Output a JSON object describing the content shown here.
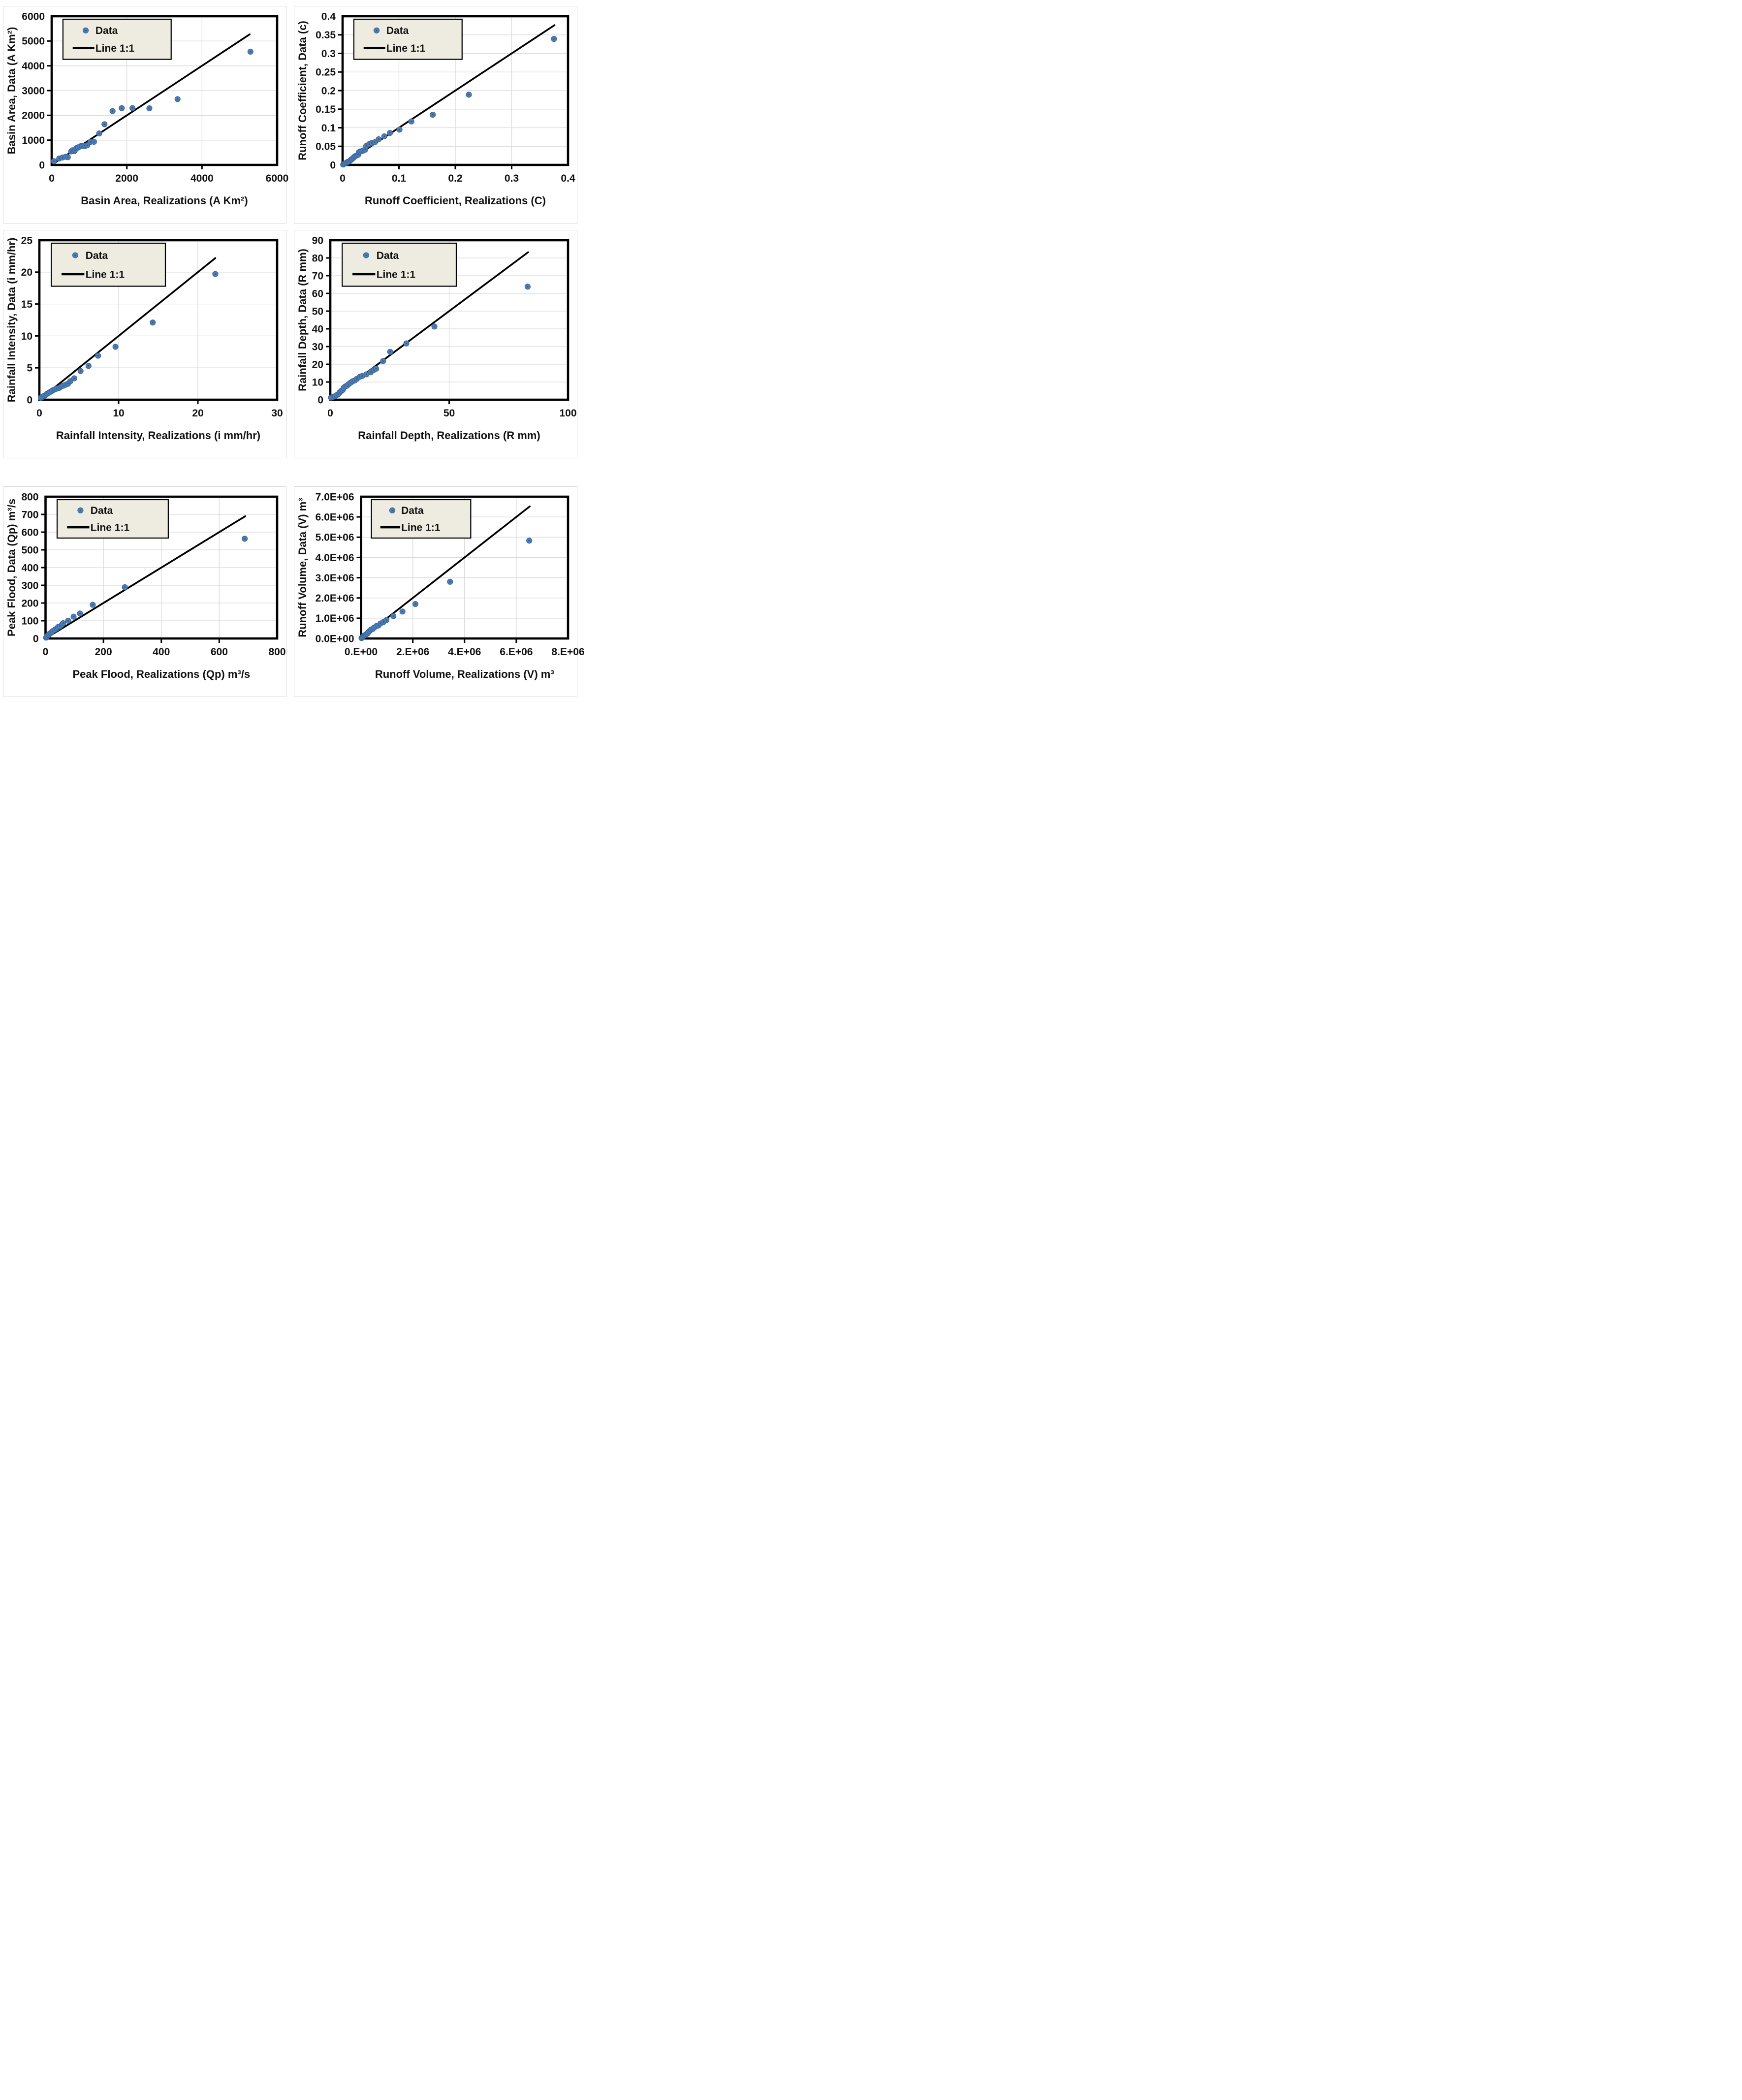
{
  "figure": {
    "description": "Six scatter plots comparing observed Data versus Monte-Carlo Realizations with a 1:1 line",
    "background": "#ffffff"
  },
  "colors": {
    "marker_fill": "#4a7ebc",
    "marker_edge": "#3a6394",
    "marker_core": "#55524e",
    "line": "#000000",
    "grid": "#d9d9d9",
    "frame": "#000000",
    "legend_fill": "#eeece1",
    "legend_border": "#000000",
    "text": "#111111",
    "panel_border": "#d7d7d7"
  },
  "legend": {
    "data_label": "Data",
    "line_label": "Line 1:1",
    "position": "top-left"
  },
  "chart_data": [
    {
      "id": "basin-area",
      "type": "scatter",
      "title": "",
      "xlabel": "Basin Area, Realizations (A Km²)",
      "ylabel": "Basin Area, Data (A Km²)",
      "xlim": [
        0,
        6000
      ],
      "ylim": [
        0,
        6000
      ],
      "grid": true,
      "legend_position": "top-left",
      "xticks": {
        "values": [
          0,
          2000,
          4000,
          6000
        ],
        "labels": [
          "0",
          "2000",
          "4000",
          "6000"
        ]
      },
      "yticks": {
        "values": [
          0,
          1000,
          2000,
          3000,
          4000,
          5000,
          6000
        ],
        "labels": [
          "0",
          "1000",
          "2000",
          "3000",
          "4000",
          "5000",
          "6000"
        ]
      },
      "series": [
        {
          "name": "Data",
          "type": "scatter",
          "points": [
            [
              60,
              150
            ],
            [
              200,
              260
            ],
            [
              290,
              300
            ],
            [
              375,
              330
            ],
            [
              430,
              310
            ],
            [
              520,
              545
            ],
            [
              555,
              590
            ],
            [
              600,
              555
            ],
            [
              620,
              600
            ],
            [
              660,
              680
            ],
            [
              705,
              700
            ],
            [
              745,
              745
            ],
            [
              800,
              770
            ],
            [
              850,
              765
            ],
            [
              895,
              770
            ],
            [
              945,
              790
            ],
            [
              1030,
              930
            ],
            [
              1125,
              935
            ],
            [
              1265,
              1270
            ],
            [
              1405,
              1640
            ],
            [
              1620,
              2170
            ],
            [
              1865,
              2290
            ],
            [
              2150,
              2290
            ],
            [
              2600,
              2285
            ],
            [
              3350,
              2655
            ],
            [
              5290,
              4570
            ]
          ]
        },
        {
          "name": "Line 1:1",
          "type": "line",
          "points": [
            [
              0,
              0
            ],
            [
              5270,
              5270
            ]
          ]
        }
      ]
    },
    {
      "id": "runoff-coefficient",
      "type": "scatter",
      "title": "",
      "xlabel": "Runoff Coefficient, Realizations (C)",
      "ylabel": "Runoff Coefficient, Data (c)",
      "xlim": [
        0,
        0.4
      ],
      "ylim": [
        0,
        0.4
      ],
      "grid": true,
      "legend_position": "top-left",
      "xticks": {
        "values": [
          0,
          0.1,
          0.2,
          0.3,
          0.4
        ],
        "labels": [
          "0",
          "0.1",
          "0.2",
          "0.3",
          "0.4"
        ]
      },
      "yticks": {
        "values": [
          0,
          0.05,
          0.1,
          0.15,
          0.2,
          0.25,
          0.3,
          0.35,
          0.4
        ],
        "labels": [
          "0",
          "0.05",
          "0.1",
          "0.15",
          "0.2",
          "0.25",
          "0.3",
          "0.35",
          "0.4"
        ]
      },
      "series": [
        {
          "name": "Data",
          "type": "scatter",
          "points": [
            [
              0.001,
              0.001
            ],
            [
              0.003,
              0.003
            ],
            [
              0.005,
              0.004
            ],
            [
              0.007,
              0.006
            ],
            [
              0.009,
              0.008
            ],
            [
              0.011,
              0.009
            ],
            [
              0.013,
              0.011
            ],
            [
              0.015,
              0.014
            ],
            [
              0.017,
              0.016
            ],
            [
              0.019,
              0.019
            ],
            [
              0.021,
              0.022
            ],
            [
              0.023,
              0.024
            ],
            [
              0.026,
              0.026
            ],
            [
              0.028,
              0.028
            ],
            [
              0.029,
              0.034
            ],
            [
              0.031,
              0.036
            ],
            [
              0.034,
              0.037
            ],
            [
              0.037,
              0.039
            ],
            [
              0.04,
              0.041
            ],
            [
              0.042,
              0.051
            ],
            [
              0.047,
              0.056
            ],
            [
              0.052,
              0.059
            ],
            [
              0.057,
              0.061
            ],
            [
              0.064,
              0.069
            ],
            [
              0.074,
              0.077
            ],
            [
              0.084,
              0.086
            ],
            [
              0.101,
              0.095
            ],
            [
              0.122,
              0.117
            ],
            [
              0.16,
              0.135
            ],
            [
              0.224,
              0.189
            ],
            [
              0.375,
              0.339
            ]
          ]
        },
        {
          "name": "Line 1:1",
          "type": "line",
          "points": [
            [
              0,
              0
            ],
            [
              0.376,
              0.376
            ]
          ]
        }
      ]
    },
    {
      "id": "rainfall-intensity",
      "type": "scatter",
      "title": "",
      "xlabel": "Rainfall Intensity, Realizations (i mm/hr)",
      "ylabel": "Rainfall Intensity, Data (i mm/hr)",
      "xlim": [
        0,
        30
      ],
      "ylim": [
        0,
        25
      ],
      "grid": true,
      "legend_position": "top-left",
      "xticks": {
        "values": [
          0,
          10,
          20,
          30
        ],
        "labels": [
          "0",
          "10",
          "20",
          "30"
        ]
      },
      "yticks": {
        "values": [
          0,
          5,
          10,
          15,
          20,
          25
        ],
        "labels": [
          "0",
          "5",
          "10",
          "15",
          "20",
          "25"
        ]
      },
      "series": [
        {
          "name": "Data",
          "type": "scatter",
          "points": [
            [
              0.2,
              0.3
            ],
            [
              0.4,
              0.45
            ],
            [
              0.6,
              0.6
            ],
            [
              0.8,
              0.75
            ],
            [
              1.0,
              0.95
            ],
            [
              1.2,
              1.1
            ],
            [
              1.4,
              1.25
            ],
            [
              1.6,
              1.4
            ],
            [
              1.8,
              1.55
            ],
            [
              2.0,
              1.65
            ],
            [
              2.2,
              1.75
            ],
            [
              2.5,
              1.85
            ],
            [
              2.8,
              2.1
            ],
            [
              3.0,
              2.2
            ],
            [
              3.3,
              2.35
            ],
            [
              3.6,
              2.5
            ],
            [
              3.9,
              2.9
            ],
            [
              4.4,
              3.35
            ],
            [
              5.2,
              4.5
            ],
            [
              6.2,
              5.3
            ],
            [
              7.4,
              6.9
            ],
            [
              9.6,
              8.3
            ],
            [
              14.3,
              12.1
            ],
            [
              22.2,
              19.7
            ]
          ]
        },
        {
          "name": "Line 1:1",
          "type": "line",
          "points": [
            [
              0,
              0
            ],
            [
              22.2,
              22.2
            ]
          ]
        }
      ]
    },
    {
      "id": "rainfall-depth",
      "type": "scatter",
      "title": "",
      "xlabel": "Rainfall Depth, Realizations (R mm)",
      "ylabel": "Rainfall Depth, Data (R mm)",
      "xlim": [
        0,
        100
      ],
      "ylim": [
        0,
        90
      ],
      "grid": true,
      "legend_position": "top-left",
      "xticks": {
        "values": [
          0,
          50,
          100
        ],
        "labels": [
          "0",
          "50",
          "100"
        ]
      },
      "yticks": {
        "values": [
          0,
          10,
          20,
          30,
          40,
          50,
          60,
          70,
          80,
          90
        ],
        "labels": [
          "0",
          "10",
          "20",
          "30",
          "40",
          "50",
          "60",
          "70",
          "80",
          "90"
        ]
      },
      "series": [
        {
          "name": "Data",
          "type": "scatter",
          "points": [
            [
              0.3,
              1.2
            ],
            [
              1,
              1.5
            ],
            [
              2,
              2
            ],
            [
              2.7,
              2.6
            ],
            [
              3.5,
              3.3
            ],
            [
              4,
              4.2
            ],
            [
              4.6,
              5
            ],
            [
              5.2,
              5.5
            ],
            [
              5.6,
              6.7
            ],
            [
              6.3,
              7.5
            ],
            [
              7,
              7.9
            ],
            [
              7.7,
              8.8
            ],
            [
              8.5,
              9.6
            ],
            [
              9.4,
              10.4
            ],
            [
              10.3,
              10.9
            ],
            [
              11.2,
              11.8
            ],
            [
              12.5,
              13
            ],
            [
              13.4,
              13.4
            ],
            [
              15.2,
              14.3
            ],
            [
              17,
              15.5
            ],
            [
              18.3,
              16.8
            ],
            [
              19.3,
              17.5
            ],
            [
              22.2,
              21.8
            ],
            [
              25.2,
              27
            ],
            [
              32,
              31.8
            ],
            [
              43.8,
              41.3
            ],
            [
              83,
              63.8
            ]
          ]
        },
        {
          "name": "Line 1:1",
          "type": "line",
          "points": [
            [
              0,
              0
            ],
            [
              83.2,
              83.2
            ]
          ]
        }
      ]
    },
    {
      "id": "peak-flood",
      "type": "scatter",
      "title": "",
      "xlabel": "Peak Flood, Realizations (Qp) m³/s",
      "ylabel": "Peak Flood, Data (Qp) m³/s",
      "xlim": [
        0,
        800
      ],
      "ylim": [
        0,
        800
      ],
      "grid": true,
      "legend_position": "top-left",
      "xticks": {
        "values": [
          0,
          200,
          400,
          600,
          800
        ],
        "labels": [
          "0",
          "200",
          "400",
          "600",
          "800"
        ]
      },
      "yticks": {
        "values": [
          0,
          100,
          200,
          300,
          400,
          500,
          600,
          700,
          800
        ],
        "labels": [
          "0",
          "100",
          "200",
          "300",
          "400",
          "500",
          "600",
          "700",
          "800"
        ]
      },
      "series": [
        {
          "name": "Data",
          "type": "scatter",
          "points": [
            [
              2,
              5
            ],
            [
              4,
              10
            ],
            [
              7,
              16
            ],
            [
              11,
              20
            ],
            [
              14,
              27
            ],
            [
              18,
              31
            ],
            [
              21,
              35
            ],
            [
              25,
              42
            ],
            [
              32,
              49
            ],
            [
              39,
              57
            ],
            [
              43,
              64
            ],
            [
              50,
              68
            ],
            [
              57,
              79
            ],
            [
              61,
              86
            ],
            [
              78,
              100
            ],
            [
              97,
              123
            ],
            [
              119,
              141
            ],
            [
              163,
              190
            ],
            [
              274,
              289
            ],
            [
              688,
              563
            ]
          ]
        },
        {
          "name": "Line 1:1",
          "type": "line",
          "points": [
            [
              0,
              0
            ],
            [
              690,
              690
            ]
          ]
        }
      ]
    },
    {
      "id": "runoff-volume",
      "type": "scatter",
      "title": "",
      "xlabel": "Runoff Volume, Realizations (V) m³",
      "ylabel": "Runoff Volume, Data (V) m³",
      "xlim": [
        0,
        8000000
      ],
      "ylim": [
        0,
        7000000
      ],
      "grid": true,
      "legend_position": "top-left",
      "xticks": {
        "values": [
          0,
          2000000,
          4000000,
          6000000,
          8000000
        ],
        "labels": [
          "0.E+00",
          "2.E+06",
          "4.E+06",
          "6.E+06",
          "8.E+06"
        ]
      },
      "yticks": {
        "values": [
          0,
          1000000,
          2000000,
          3000000,
          4000000,
          5000000,
          6000000,
          7000000
        ],
        "labels": [
          "0.0E+00",
          "1.0E+06",
          "2.0E+06",
          "3.0E+06",
          "4.0E+06",
          "5.0E+06",
          "6.0E+06",
          "7.0E+06"
        ]
      },
      "series": [
        {
          "name": "Data",
          "type": "scatter",
          "points": [
            [
              20000,
              20000
            ],
            [
              50000,
              60000
            ],
            [
              80000,
              100000
            ],
            [
              120000,
              140000
            ],
            [
              160000,
              170000
            ],
            [
              200000,
              210000
            ],
            [
              240000,
              240000
            ],
            [
              280000,
              300000
            ],
            [
              330000,
              370000
            ],
            [
              390000,
              440000
            ],
            [
              450000,
              470000
            ],
            [
              510000,
              540000
            ],
            [
              590000,
              610000
            ],
            [
              670000,
              640000
            ],
            [
              750000,
              740000
            ],
            [
              860000,
              810000
            ],
            [
              980000,
              910000
            ],
            [
              1250000,
              1100000
            ],
            [
              1600000,
              1330000
            ],
            [
              2100000,
              1700000
            ],
            [
              3440000,
              2800000
            ],
            [
              6500000,
              4830000
            ]
          ]
        },
        {
          "name": "Line 1:1",
          "type": "line",
          "points": [
            [
              0,
              0
            ],
            [
              6520000,
              6520000
            ]
          ]
        }
      ]
    }
  ]
}
